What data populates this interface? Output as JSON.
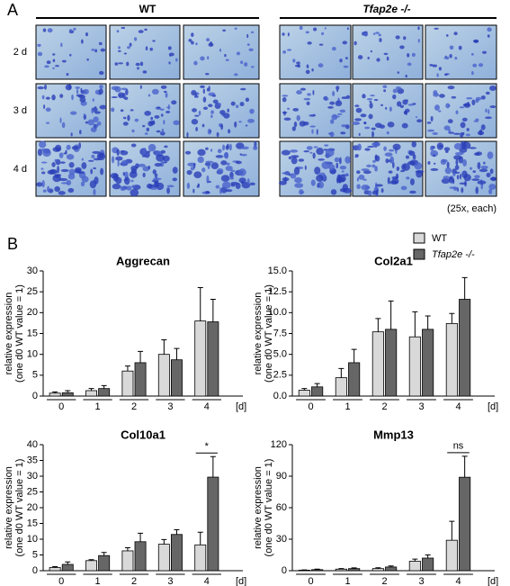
{
  "panel_a": {
    "label": "A",
    "groups": [
      "WT",
      "Tfap2e -/-"
    ],
    "rows": [
      "2 d",
      "3 d",
      "4 d"
    ],
    "note": "(25x, each)"
  },
  "panel_b": {
    "label": "B"
  },
  "chart_data": [
    {
      "type": "bar",
      "title": "Aggrecan",
      "ylabel": [
        "relative expression",
        "(one d0 WT value = 1)"
      ],
      "xlabel": "[d]",
      "categories": [
        "0",
        "1",
        "2",
        "3",
        "4"
      ],
      "ylim": [
        0,
        30
      ],
      "yticks": [
        0,
        5,
        10,
        15,
        20,
        25,
        30
      ],
      "series": [
        {
          "name": "WT",
          "color": "#d9d9d9",
          "values": [
            0.7,
            1.3,
            6,
            10,
            18
          ],
          "errors": [
            0.3,
            0.5,
            1.2,
            3.5,
            8
          ]
        },
        {
          "name": "Tfap2e -/-",
          "color": "#666666",
          "values": [
            0.8,
            1.8,
            8,
            8.7,
            17.8
          ],
          "errors": [
            0.5,
            0.7,
            2.7,
            2.7,
            5.4
          ]
        }
      ],
      "annotations": []
    },
    {
      "type": "bar",
      "title": "Col2a1",
      "ylabel": [
        "relative expression",
        "(one d0 WT value = 1)"
      ],
      "xlabel": "[d]",
      "categories": [
        "0",
        "1",
        "2",
        "3",
        "4"
      ],
      "ylim": [
        0,
        15
      ],
      "yticks": [
        {
          "value": 0,
          "label": "0.0"
        },
        2.5,
        {
          "value": 5,
          "label": "5.0"
        },
        7.5,
        {
          "value": 10,
          "label": "10.0"
        },
        12.5,
        {
          "value": 15,
          "label": "15.0"
        }
      ],
      "series": [
        {
          "name": "WT",
          "color": "#d9d9d9",
          "values": [
            0.7,
            2.2,
            7.7,
            7.1,
            8.7
          ],
          "errors": [
            0.2,
            1.1,
            1.6,
            3,
            1.2
          ]
        },
        {
          "name": "Tfap2e -/-",
          "color": "#666666",
          "values": [
            1.1,
            4,
            8,
            8,
            11.6
          ],
          "errors": [
            0.4,
            1.6,
            3.4,
            1.6,
            2.6
          ]
        }
      ],
      "annotations": []
    },
    {
      "type": "bar",
      "title": "Col10a1",
      "ylabel": [
        "relative expression",
        "(one d0 WT value = 1)"
      ],
      "xlabel": "[d]",
      "categories": [
        "0",
        "1",
        "2",
        "3",
        "4"
      ],
      "ylim": [
        0,
        40
      ],
      "yticks": [
        0,
        5,
        10,
        15,
        20,
        25,
        30,
        35,
        40
      ],
      "series": [
        {
          "name": "WT",
          "color": "#d9d9d9",
          "values": [
            1,
            3.2,
            6.3,
            8.4,
            8.2
          ],
          "errors": [
            0.3,
            0.3,
            1,
            1.5,
            4
          ]
        },
        {
          "name": "Tfap2e -/-",
          "color": "#666666",
          "values": [
            2,
            4.8,
            9.2,
            11.5,
            29.7
          ],
          "errors": [
            0.8,
            1,
            2.7,
            1.5,
            6.5
          ]
        }
      ],
      "annotations": [
        {
          "text": "*",
          "x": "4"
        }
      ]
    },
    {
      "type": "bar",
      "title": "Mmp13",
      "ylabel": [
        "relative expression",
        "(one d0 WT value = 1)"
      ],
      "xlabel": "[d]",
      "categories": [
        "0",
        "1",
        "2",
        "3",
        "4"
      ],
      "ylim": [
        0,
        120
      ],
      "yticks": [
        0,
        30,
        60,
        90,
        120
      ],
      "series": [
        {
          "name": "WT",
          "color": "#d9d9d9",
          "values": [
            0.5,
            1.5,
            2,
            9,
            29
          ],
          "errors": [
            0.3,
            0.5,
            0.8,
            2,
            18
          ]
        },
        {
          "name": "Tfap2e -/-",
          "color": "#666666",
          "values": [
            1,
            2,
            3.5,
            12,
            89
          ],
          "errors": [
            0.5,
            0.7,
            1,
            3,
            20
          ]
        }
      ],
      "annotations": [
        {
          "text": "ns",
          "x": "4"
        }
      ]
    }
  ]
}
